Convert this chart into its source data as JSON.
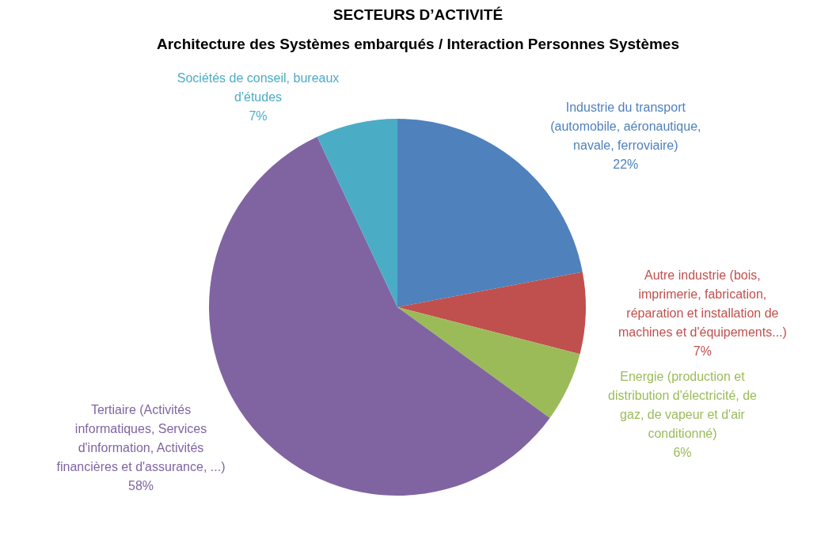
{
  "chart_data": {
    "type": "pie",
    "title": "SECTEURS D’ACTIVITÉ",
    "subtitle": "Architecture des Systèmes embarqués / Interaction Personnes Systèmes",
    "categories": [
      "Industrie du transport (automobile, aéronautique, navale, ferroviaire)",
      "Autre industrie (bois, imprimerie, fabrication, réparation et installation de machines et d'équipements...)",
      "Energie (production et distribution d'électricité, de gaz, de vapeur et d'air conditionné)",
      "Tertiaire (Activités informatiques, Services d'information, Activités financières et d'assurance, ...)",
      "Sociétés de conseil, bureaux d'études"
    ],
    "values": [
      22,
      7,
      6,
      58,
      7
    ],
    "colors": [
      "#4f81bd",
      "#c0504d",
      "#9bbb59",
      "#8064a2",
      "#4bacc6"
    ],
    "value_labels": [
      "22%",
      "7%",
      "6%",
      "58%",
      "7%"
    ],
    "legend": false
  }
}
